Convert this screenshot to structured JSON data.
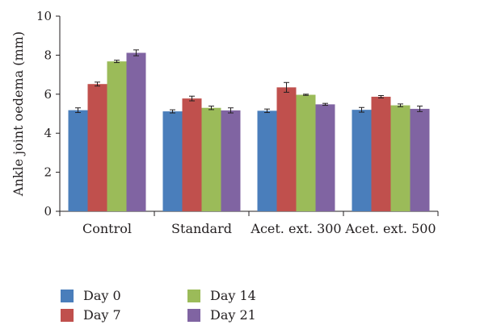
{
  "chart_data": {
    "type": "bar",
    "ylabel": "Ankle joint oedema (mm)",
    "xlabel": "",
    "ylim": [
      0,
      10
    ],
    "yticks": [
      0,
      2,
      4,
      6,
      8,
      10
    ],
    "categories": [
      "Control",
      "Standard",
      "Acet. ext. 300",
      "Acet. ext. 500"
    ],
    "series": [
      {
        "name": "Day 0",
        "color": "#4a7ebb",
        "values": [
          5.18,
          5.12,
          5.15,
          5.2
        ],
        "errors": [
          0.12,
          0.08,
          0.09,
          0.12
        ]
      },
      {
        "name": "Day 7",
        "color": "#c0504d",
        "values": [
          6.52,
          5.78,
          6.35,
          5.87
        ],
        "errors": [
          0.1,
          0.12,
          0.25,
          0.06
        ]
      },
      {
        "name": "Day 14",
        "color": "#9bbb59",
        "values": [
          7.68,
          5.3,
          5.97,
          5.43
        ],
        "errors": [
          0.06,
          0.09,
          0.03,
          0.07
        ]
      },
      {
        "name": "Day 21",
        "color": "#8064a2",
        "values": [
          8.12,
          5.17,
          5.48,
          5.25
        ],
        "errors": [
          0.15,
          0.13,
          0.05,
          0.14
        ]
      }
    ],
    "error_bars": true,
    "grid": false,
    "legend_position": "bottom-left"
  }
}
